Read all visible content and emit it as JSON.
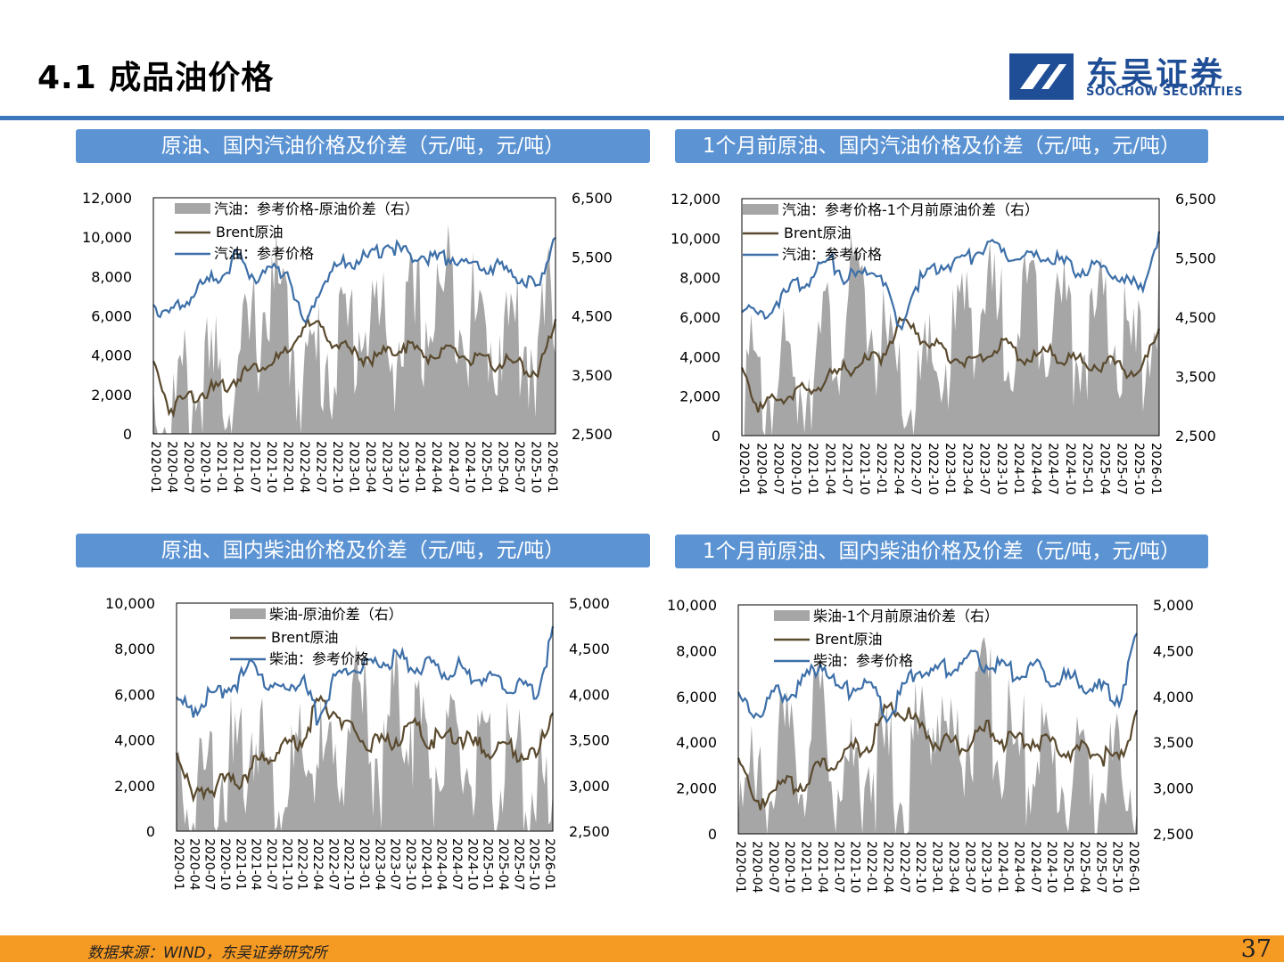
{
  "header": {
    "title": "4.1 成品油价格",
    "logo_cn": "东吴证券",
    "logo_en": "SOOCHOW SECURITIES"
  },
  "colors": {
    "accent": "#3d78bd",
    "panel": "#5b93d3",
    "footer": "#f59a23",
    "brent": "#5a4a2e",
    "product": "#3d6fa8",
    "spread": "#a6a6a6"
  },
  "footer": {
    "source": "数据来源：WIND，东吴证券研究所",
    "page": "37"
  },
  "chart_data": [
    {
      "type": "area",
      "title": "原油、国内汽油价格及价差（元/吨，元/吨）",
      "x_ticks": [
        "2020-01",
        "2020-04",
        "2020-07",
        "2020-10",
        "2021-01",
        "2021-04",
        "2021-07",
        "2021-10",
        "2022-01",
        "2022-04",
        "2022-07",
        "2022-10",
        "2023-01",
        "2023-04",
        "2023-07",
        "2023-10",
        "2024-01",
        "2024-04",
        "2024-07",
        "2024-10",
        "2025-01",
        "2025-04",
        "2025-07",
        "2025-10",
        "2026-01"
      ],
      "y_left": {
        "ticks": [
          "0",
          "2,000",
          "4,000",
          "6,000",
          "8,000",
          "10,000",
          "12,000"
        ],
        "range": [
          0,
          12000
        ]
      },
      "y_right": {
        "ticks": [
          "2,500",
          "3,500",
          "4,500",
          "5,500",
          "6,500"
        ],
        "range": [
          2500,
          6500
        ]
      },
      "legend": [
        "汽油：参考价格-原油价差（右）",
        "Brent原油",
        "汽油：参考价格"
      ],
      "series": [
        {
          "name": "汽油：参考价格-原油价差（右）",
          "axis": "right",
          "style": "area",
          "values": [
            3700,
            3400,
            3900,
            3900,
            4000,
            4100,
            4800,
            5600,
            5000,
            4000,
            4500,
            4600,
            4900,
            5200,
            4600,
            4900,
            5000,
            5300,
            5700,
            5000,
            4800,
            4900,
            4800,
            4500,
            5500
          ]
        },
        {
          "name": "Brent原油",
          "axis": "left",
          "style": "line",
          "values": [
            3800,
            1500,
            2100,
            2400,
            2500,
            3100,
            3600,
            3900,
            4200,
            5800,
            5500,
            4800,
            4200,
            4100,
            4300,
            4800,
            4300,
            4200,
            4400,
            4000,
            3800,
            3900,
            3600,
            3400,
            5700
          ]
        },
        {
          "name": "汽油：参考价格",
          "axis": "left",
          "style": "line",
          "values": [
            6800,
            6300,
            7000,
            7800,
            8300,
            9200,
            8200,
            8400,
            8600,
            5500,
            7800,
            8800,
            9000,
            9200,
            9900,
            9400,
            9300,
            9100,
            9300,
            8600,
            8800,
            8500,
            8200,
            7500,
            10600
          ]
        }
      ]
    },
    {
      "type": "area",
      "title": "1个月前原油、国内汽油价格及价差（元/吨，元/吨）",
      "x_ticks": [
        "2020-01",
        "2020-04",
        "2020-07",
        "2020-10",
        "2021-01",
        "2021-04",
        "2021-07",
        "2021-10",
        "2022-01",
        "2022-04",
        "2022-07",
        "2022-10",
        "2023-01",
        "2023-04",
        "2023-07",
        "2023-10",
        "2024-01",
        "2024-04",
        "2024-07",
        "2024-10",
        "2025-01",
        "2025-04",
        "2025-07",
        "2025-10",
        "2026-01"
      ],
      "y_left": {
        "ticks": [
          "0",
          "2,000",
          "4,000",
          "6,000",
          "8,000",
          "10,000",
          "12,000"
        ],
        "range": [
          0,
          12000
        ]
      },
      "y_right": {
        "ticks": [
          "2,500",
          "3,500",
          "4,500",
          "5,500",
          "6,500"
        ],
        "range": [
          2500,
          6500
        ]
      },
      "legend": [
        "汽油：参考价格-1个月前原油价差（右）",
        "Brent原油",
        "汽油：参考价格"
      ],
      "series": [
        {
          "name": "汽油：参考价格-1个月前原油价差（右）",
          "axis": "right",
          "style": "area",
          "values": [
            4300,
            3700,
            4200,
            4000,
            4500,
            4700,
            5200,
            5500,
            4600,
            3800,
            3700,
            4200,
            4500,
            5400,
            5300,
            4900,
            5200,
            5400,
            5300,
            4900,
            4800,
            5000,
            4600,
            4200,
            5900
          ]
        },
        {
          "name": "Brent原油",
          "axis": "left",
          "style": "line",
          "values": [
            3800,
            1500,
            2100,
            2400,
            2500,
            3100,
            3600,
            3900,
            4200,
            5800,
            5500,
            4800,
            4200,
            4100,
            4300,
            4800,
            4300,
            4200,
            4400,
            4000,
            3800,
            3900,
            3600,
            3400,
            5700
          ]
        },
        {
          "name": "汽油：参考价格",
          "axis": "left",
          "style": "line",
          "values": [
            6800,
            6300,
            7000,
            7800,
            8300,
            9200,
            8200,
            8400,
            8600,
            5500,
            7800,
            8800,
            9000,
            9200,
            9900,
            9400,
            9300,
            9100,
            9300,
            8600,
            8800,
            8500,
            8200,
            7500,
            10600
          ]
        }
      ]
    },
    {
      "type": "area",
      "title": "原油、国内柴油价格及价差（元/吨，元/吨）",
      "x_ticks": [
        "2020-01",
        "2020-04",
        "2020-07",
        "2020-10",
        "2021-01",
        "2021-04",
        "2021-07",
        "2021-10",
        "2022-01",
        "2022-04",
        "2022-07",
        "2022-10",
        "2023-01",
        "2023-04",
        "2023-07",
        "2023-10",
        "2024-01",
        "2024-04",
        "2024-07",
        "2024-10",
        "2025-01",
        "2025-04",
        "2025-07",
        "2025-10",
        "2026-01"
      ],
      "y_left": {
        "ticks": [
          "0",
          "2,000",
          "4,000",
          "6,000",
          "8,000",
          "10,000"
        ],
        "range": [
          0,
          10000
        ]
      },
      "y_right": {
        "ticks": [
          "2,500",
          "3,000",
          "3,500",
          "4,000",
          "4,500",
          "5,000"
        ],
        "range": [
          2500,
          5000
        ]
      },
      "legend": [
        "柴油-原油价差（右）",
        "Brent原油",
        "柴油：参考价格"
      ],
      "series": [
        {
          "name": "柴油-原油价差（右）",
          "axis": "right",
          "style": "area",
          "values": [
            3500,
            3100,
            3600,
            3700,
            3500,
            4200,
            3400,
            3500,
            3500,
            3800,
            3300,
            4300,
            4100,
            3600,
            4300,
            4200,
            3800,
            3600,
            3700,
            3600,
            3400,
            3700,
            3400,
            3500,
            2700
          ]
        },
        {
          "name": "Brent原油",
          "axis": "left",
          "style": "line",
          "values": [
            3800,
            1500,
            2100,
            2400,
            2500,
            3100,
            3600,
            3900,
            4200,
            5800,
            5500,
            4800,
            4200,
            4100,
            4300,
            4800,
            4300,
            4200,
            4400,
            4000,
            3800,
            3900,
            3600,
            3400,
            5700
          ]
        },
        {
          "name": "柴油：参考价格",
          "axis": "left",
          "style": "line",
          "values": [
            6000,
            5500,
            6200,
            6400,
            6800,
            7800,
            6400,
            6600,
            6800,
            5200,
            6700,
            7500,
            7300,
            7600,
            7900,
            7600,
            7500,
            7200,
            7400,
            6900,
            7000,
            6700,
            6500,
            6200,
            8900
          ]
        }
      ]
    },
    {
      "type": "area",
      "title": "1个月前原油、国内柴油价格及价差（元/吨，元/吨）",
      "x_ticks": [
        "2020-01",
        "2020-04",
        "2020-07",
        "2020-10",
        "2021-01",
        "2021-04",
        "2021-07",
        "2021-10",
        "2022-01",
        "2022-04",
        "2022-07",
        "2022-10",
        "2023-01",
        "2023-04",
        "2023-07",
        "2023-10",
        "2024-01",
        "2024-04",
        "2024-07",
        "2024-10",
        "2025-01",
        "2025-04",
        "2025-07",
        "2025-10",
        "2026-01"
      ],
      "y_left": {
        "ticks": [
          "0",
          "2,000",
          "4,000",
          "6,000",
          "8,000",
          "10,000"
        ],
        "range": [
          0,
          10000
        ]
      },
      "y_right": {
        "ticks": [
          "2,500",
          "3,000",
          "3,500",
          "4,000",
          "4,500",
          "5,000"
        ],
        "range": [
          2500,
          5000
        ]
      },
      "legend": [
        "柴油-1个月前原油价差（右）",
        "Brent原油",
        "柴油：参考价格"
      ],
      "series": [
        {
          "name": "柴油-1个月前原油价差（右）",
          "axis": "right",
          "style": "area",
          "values": [
            3700,
            3200,
            3800,
            3700,
            3700,
            4300,
            3500,
            3600,
            3700,
            3600,
            3400,
            4100,
            4300,
            3700,
            4200,
            4300,
            3900,
            3700,
            3800,
            3600,
            3500,
            3700,
            3400,
            3500,
            3400
          ]
        },
        {
          "name": "Brent原油",
          "axis": "left",
          "style": "line",
          "values": [
            3800,
            1500,
            2100,
            2400,
            2500,
            3100,
            3600,
            3900,
            4200,
            5800,
            5500,
            4800,
            4200,
            4100,
            4300,
            4800,
            4300,
            4200,
            4400,
            4000,
            3800,
            3900,
            3600,
            3400,
            5700
          ]
        },
        {
          "name": "柴油：参考价格",
          "axis": "left",
          "style": "line",
          "values": [
            6000,
            5500,
            6200,
            6400,
            6800,
            7800,
            6400,
            6600,
            6800,
            5200,
            6700,
            7500,
            7300,
            7600,
            7900,
            7600,
            7500,
            7200,
            7400,
            6900,
            7000,
            6700,
            6500,
            6200,
            8900
          ]
        }
      ]
    }
  ]
}
